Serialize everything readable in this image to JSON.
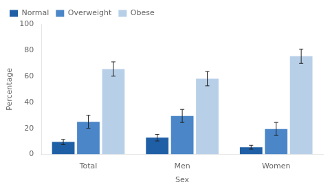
{
  "chart_data": {
    "type": "bar",
    "categories": [
      "Total",
      "Men",
      "Women"
    ],
    "series": [
      {
        "name": "Normal",
        "color": "#1f5fa6",
        "values": [
          9.5,
          12.8,
          5.5
        ],
        "errors": [
          2.0,
          2.5,
          1.5
        ]
      },
      {
        "name": "Overweight",
        "color": "#4a86c8",
        "values": [
          25.0,
          29.5,
          19.5
        ],
        "errors": [
          5.0,
          5.0,
          5.0
        ]
      },
      {
        "name": "Obese",
        "color": "#b8cfe8",
        "values": [
          65.5,
          58.1,
          75.3
        ],
        "errors": [
          5.5,
          5.5,
          5.5
        ]
      }
    ],
    "xlabel": "Sex",
    "ylabel": "Percentage",
    "ylim": [
      0,
      100
    ],
    "yticks": [
      0,
      20,
      40,
      60,
      80,
      100
    ],
    "grid": false,
    "legend": "upper left"
  }
}
